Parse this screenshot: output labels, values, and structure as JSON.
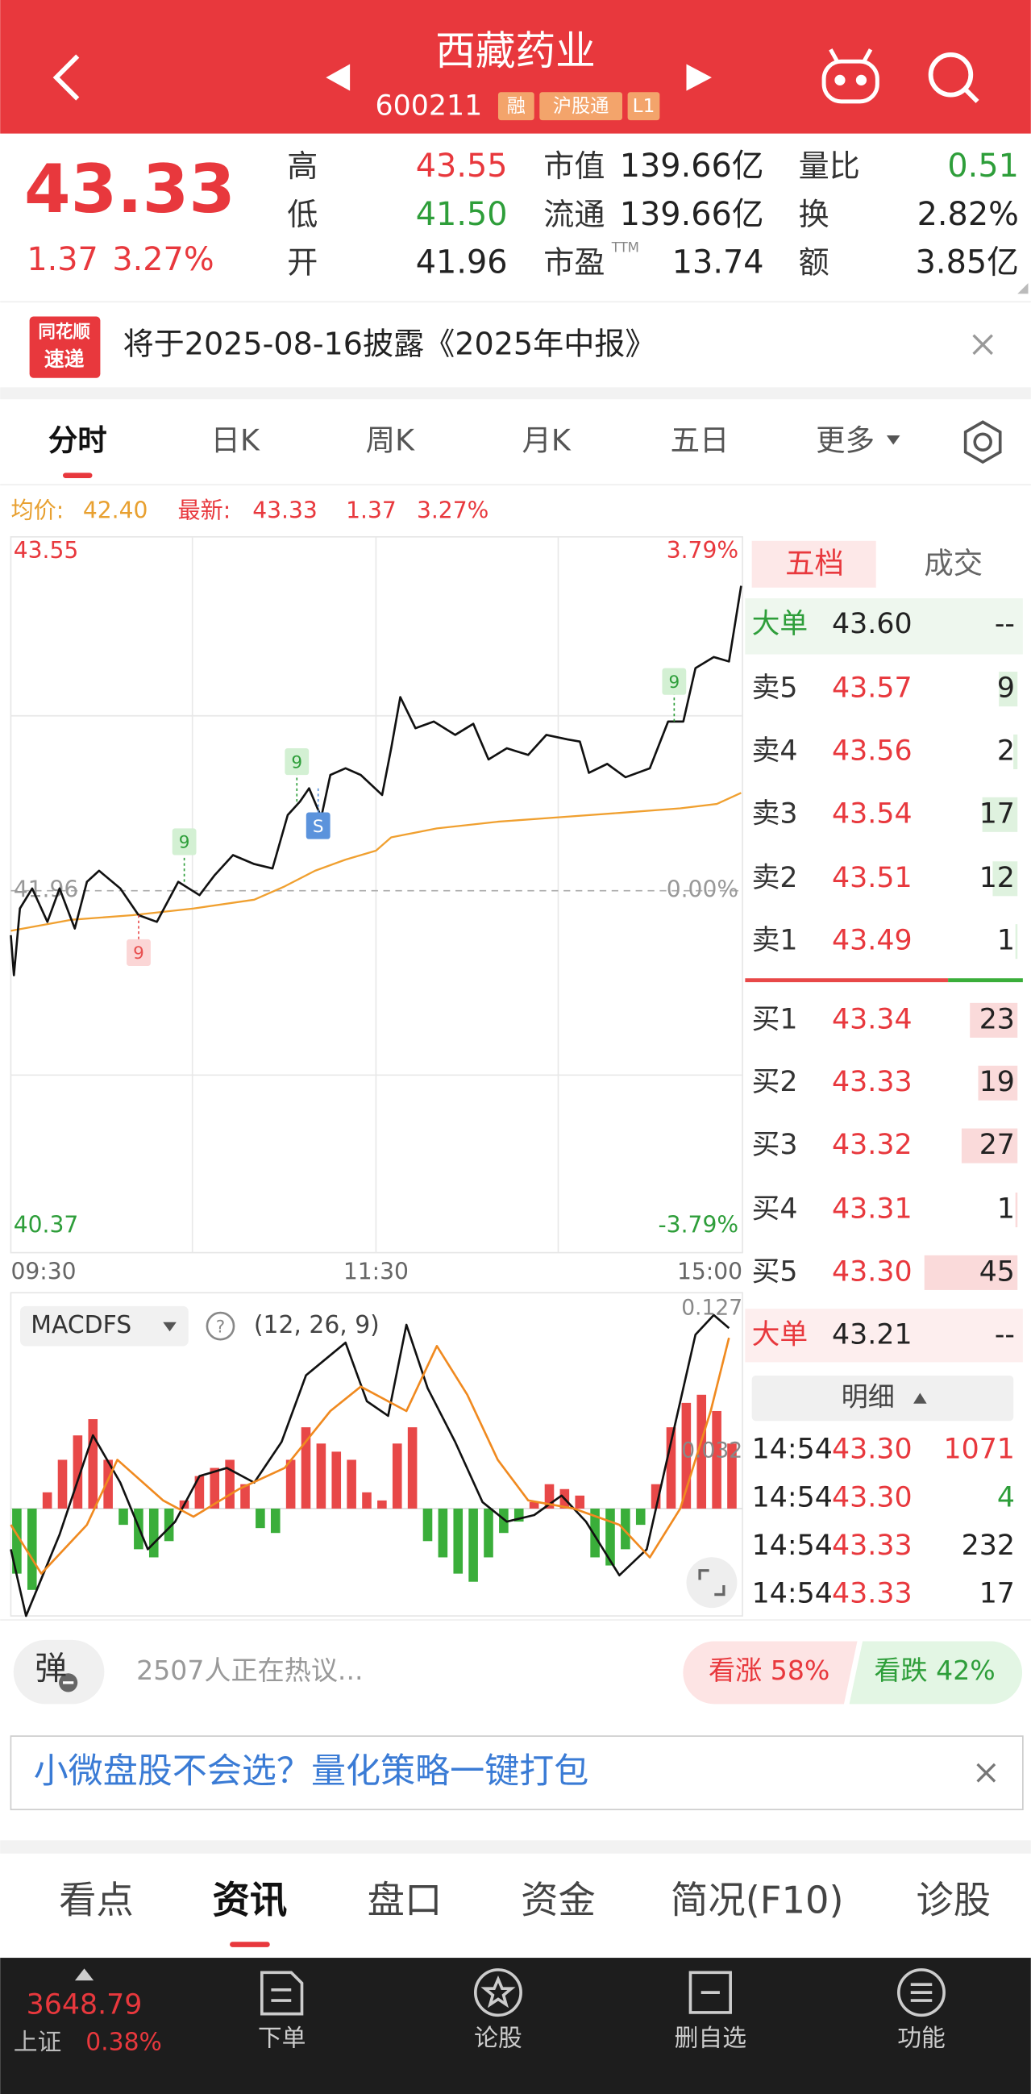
{
  "header": {
    "title": "西藏药业",
    "code": "600211",
    "tags": [
      "融",
      "沪股通",
      "L1"
    ]
  },
  "quote": {
    "price": "43.33",
    "change": "1.37",
    "change_pct": "3.27%",
    "stats": [
      {
        "label": "高",
        "value": "43.55"
      },
      {
        "label": "低",
        "value": "41.50"
      },
      {
        "label": "开",
        "value": "41.96"
      },
      {
        "label": "市值",
        "value": "139.66亿"
      },
      {
        "label": "流通",
        "value": "139.66亿"
      },
      {
        "label": "市盈",
        "sup": "TTM",
        "value": "13.74"
      },
      {
        "label": "量比",
        "value": "0.51"
      },
      {
        "label": "换",
        "value": "2.82%"
      },
      {
        "label": "额",
        "value": "3.85亿"
      }
    ]
  },
  "notice": {
    "logo": [
      "同花顺",
      "速递"
    ],
    "text": "将于2025-08-16披露《2025年中报》"
  },
  "chart_tabs": [
    "分时",
    "日K",
    "周K",
    "月K",
    "五日",
    "更多"
  ],
  "info": {
    "avg_label": "均价:",
    "avg": "42.40",
    "last_label": "最新:",
    "last": "43.33",
    "change": "1.37",
    "change_pct": "3.27%"
  },
  "chart_data": [
    {
      "type": "line",
      "xlim": [
        0,
        240
      ],
      "xticks": [
        {
          "value": 0,
          "label": "09:30"
        },
        {
          "value": 120,
          "label": "11:30"
        },
        {
          "value": 240,
          "label": "15:00"
        }
      ],
      "ylim": [
        40.37,
        43.55
      ],
      "yticks": [
        43.55,
        41.96,
        40.37
      ],
      "y2lim": [
        -3.79,
        3.79
      ],
      "y2ticks": [
        {
          "value": 3.79,
          "label": "3.79%"
        },
        {
          "value": 0,
          "label": "0.00%"
        },
        {
          "value": -3.79,
          "label": "-3.79%"
        }
      ],
      "grid": true,
      "series": [
        {
          "color": "#111111",
          "x": [
            0,
            1,
            3,
            7,
            12,
            16,
            21,
            25,
            29,
            36,
            42,
            48,
            55,
            62,
            67,
            73,
            80,
            86,
            91,
            95,
            98,
            102,
            105,
            110,
            115,
            122,
            125,
            128,
            133,
            139,
            146,
            152,
            157,
            163,
            170,
            176,
            183,
            187,
            190,
            196,
            202,
            210,
            216,
            221,
            225,
            231,
            236,
            240
          ],
          "values": [
            41.76,
            41.58,
            41.88,
            41.97,
            41.82,
            41.97,
            41.79,
            42.0,
            42.05,
            41.97,
            41.85,
            41.82,
            42.0,
            41.94,
            42.03,
            42.12,
            42.08,
            42.06,
            42.3,
            42.36,
            42.42,
            42.29,
            42.48,
            42.51,
            42.48,
            42.39,
            42.6,
            42.83,
            42.69,
            42.72,
            42.66,
            42.71,
            42.55,
            42.6,
            42.57,
            42.66,
            42.64,
            42.63,
            42.49,
            42.53,
            42.47,
            42.51,
            42.72,
            42.72,
            42.96,
            43.01,
            42.99,
            43.33
          ]
        },
        {
          "color": "#f0a030",
          "x": [
            0,
            20,
            40,
            60,
            80,
            90,
            100,
            110,
            120,
            125,
            140,
            160,
            180,
            200,
            220,
            232,
            240
          ],
          "values": [
            41.78,
            41.83,
            41.85,
            41.88,
            41.92,
            41.98,
            42.05,
            42.1,
            42.14,
            42.2,
            42.24,
            42.27,
            42.29,
            42.31,
            42.33,
            42.35,
            42.4
          ]
        }
      ],
      "annotations": [
        {
          "label": "9",
          "x": 42,
          "value": 41.85,
          "color": "#e85050"
        },
        {
          "label": "9",
          "x": 57,
          "value": 42.0,
          "color": "#2e9e3a"
        },
        {
          "label": "9",
          "x": 94,
          "value": 42.36,
          "color": "#2e9e3a"
        },
        {
          "label": "S",
          "x": 101,
          "value": 42.42,
          "color": "#5b93dc"
        },
        {
          "label": "9",
          "x": 218,
          "value": 42.72,
          "color": "#2e9e3a"
        }
      ]
    },
    {
      "type": "bar",
      "indicator": "MACDFS",
      "params": "(12, 26, 9)",
      "xlim": [
        0,
        240
      ],
      "ylim": [
        -0.066,
        0.127
      ],
      "yticks": [
        0.127,
        0.032
      ],
      "up_color": "#e84848",
      "down_color": "#3aae3a",
      "x": [
        0,
        5,
        10,
        15,
        20,
        25,
        30,
        35,
        40,
        45,
        50,
        55,
        60,
        65,
        70,
        75,
        80,
        85,
        90,
        95,
        100,
        105,
        110,
        115,
        120,
        125,
        130,
        135,
        140,
        145,
        150,
        155,
        160,
        165,
        170,
        175,
        180,
        185,
        190,
        195,
        200,
        205,
        210,
        215,
        220,
        225,
        230,
        235
      ],
      "values": [
        -0.04,
        -0.05,
        0.01,
        0.03,
        0.045,
        0.055,
        0.03,
        -0.01,
        -0.025,
        -0.03,
        -0.02,
        0.005,
        0.02,
        0.025,
        0.03,
        0.015,
        -0.012,
        -0.015,
        0.03,
        0.05,
        0.04,
        0.035,
        0.03,
        0.01,
        0.005,
        0.04,
        0.05,
        -0.02,
        -0.03,
        -0.04,
        -0.045,
        -0.03,
        -0.015,
        -0.008,
        0.004,
        0.015,
        0.012,
        0.008,
        -0.03,
        -0.035,
        -0.025,
        -0.01,
        0.015,
        0.05,
        0.065,
        0.07,
        0.06,
        0.04
      ],
      "lines": [
        {
          "color": "#111111",
          "x": [
            0,
            5,
            16,
            27,
            36,
            45,
            54,
            62,
            71,
            80,
            89,
            97,
            110,
            117,
            124,
            130,
            137,
            146,
            155,
            163,
            172,
            181,
            189,
            200,
            209,
            216,
            225,
            231,
            236
          ],
          "values": [
            -0.025,
            -0.066,
            -0.016,
            0.045,
            0.016,
            -0.025,
            -0.008,
            0.02,
            0.025,
            0.016,
            0.041,
            0.082,
            0.102,
            0.066,
            0.057,
            0.113,
            0.074,
            0.041,
            0.004,
            -0.008,
            -0.004,
            0.008,
            -0.008,
            -0.041,
            -0.025,
            0.033,
            0.107,
            0.119,
            0.111
          ]
        },
        {
          "color": "#f08a20",
          "x": [
            0,
            10,
            25,
            35,
            50,
            60,
            75,
            90,
            105,
            115,
            130,
            140,
            150,
            160,
            170,
            185,
            200,
            210,
            220,
            230,
            236
          ],
          "values": [
            -0.01,
            -0.04,
            -0.01,
            0.03,
            0.005,
            -0.005,
            0.012,
            0.025,
            0.06,
            0.075,
            0.06,
            0.1,
            0.07,
            0.03,
            0.005,
            0.0,
            -0.01,
            -0.03,
            0.0,
            0.06,
            0.105
          ]
        }
      ]
    }
  ],
  "order_book": {
    "tabs": [
      "五档",
      "成交"
    ],
    "big_ask": {
      "label": "大单",
      "price": "43.60",
      "volume": "--"
    },
    "asks": [
      {
        "label": "卖5",
        "price": "43.57",
        "volume": 9
      },
      {
        "label": "卖4",
        "price": "43.56",
        "volume": 2
      },
      {
        "label": "卖3",
        "price": "43.54",
        "volume": 17
      },
      {
        "label": "卖2",
        "price": "43.51",
        "volume": 12
      },
      {
        "label": "卖1",
        "price": "43.49",
        "volume": 1
      }
    ],
    "bids": [
      {
        "label": "买1",
        "price": "43.34",
        "volume": 23
      },
      {
        "label": "买2",
        "price": "43.33",
        "volume": 19
      },
      {
        "label": "买3",
        "price": "43.32",
        "volume": 27
      },
      {
        "label": "买4",
        "price": "43.31",
        "volume": 1
      },
      {
        "label": "买5",
        "price": "43.30",
        "volume": 45
      }
    ],
    "big_bid": {
      "label": "大单",
      "price": "43.21",
      "volume": "--"
    },
    "detail_label": "明细",
    "trades": [
      {
        "time": "14:54",
        "price": "43.30",
        "volume": 1071
      },
      {
        "time": "14:54",
        "price": "43.30",
        "volume": 4
      },
      {
        "time": "14:54",
        "price": "43.33",
        "volume": 232
      },
      {
        "time": "14:54",
        "price": "43.33",
        "volume": 17
      }
    ]
  },
  "social": {
    "danmu": "弹",
    "discussing": "2507人正在热议...",
    "bull": "看涨 58%",
    "bear": "看跌 42%"
  },
  "ad": "小微盘股不会选？量化策略一键打包",
  "bottom_tabs": [
    "看点",
    "资讯",
    "盘口",
    "资金",
    "简况(F10)",
    "诊股"
  ],
  "nav": {
    "index_value": "3648.79",
    "index_name": "上证",
    "index_pct": "0.38%",
    "items": [
      "下单",
      "论股",
      "删自选",
      "功能"
    ]
  }
}
